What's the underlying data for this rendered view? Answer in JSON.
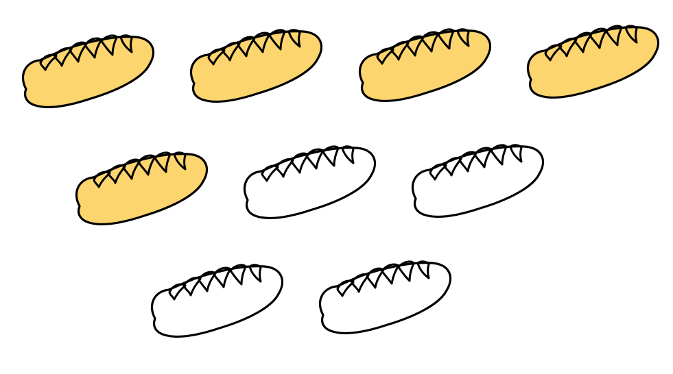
{
  "colors": {
    "background": "#ffffff",
    "filled": "#FDD56E",
    "outline": "#000000",
    "unfilled": "#ffffff"
  },
  "loaves": [
    {
      "icon": "bread-loaf-icon",
      "filled": true
    },
    {
      "icon": "bread-loaf-icon",
      "filled": true
    },
    {
      "icon": "bread-loaf-icon",
      "filled": true
    },
    {
      "icon": "bread-loaf-icon",
      "filled": true
    },
    {
      "icon": "bread-loaf-icon",
      "filled": true
    },
    {
      "icon": "bread-loaf-icon",
      "filled": false
    },
    {
      "icon": "bread-loaf-icon",
      "filled": false
    },
    {
      "icon": "bread-loaf-icon",
      "filled": false
    },
    {
      "icon": "bread-loaf-icon",
      "filled": false
    }
  ]
}
